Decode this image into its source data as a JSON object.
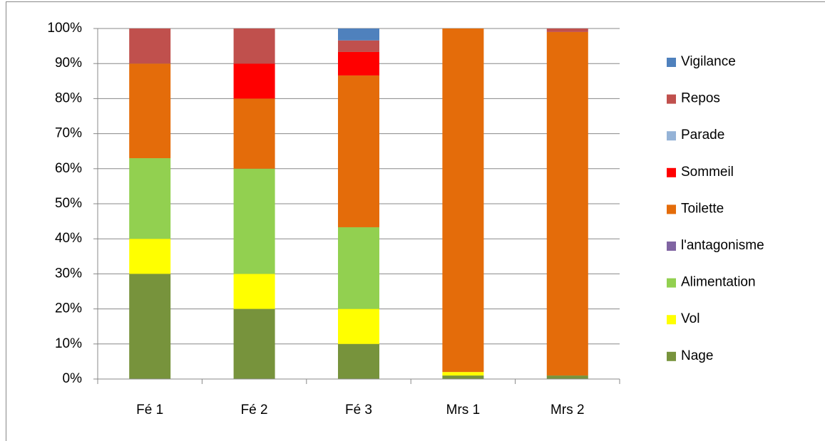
{
  "chart_data": {
    "type": "stacked_bar",
    "categories": [
      "Fé 1",
      "Fé 2",
      "Fé 3",
      "Mrs 1",
      "Mrs 2"
    ],
    "series": [
      {
        "name": "Nage",
        "color": "#77933c",
        "values": [
          30,
          20,
          10,
          1,
          1
        ]
      },
      {
        "name": "Vol",
        "color": "#ffff00",
        "values": [
          10,
          10,
          10,
          1,
          0
        ]
      },
      {
        "name": "Alimentation",
        "color": "#92d050",
        "values": [
          23,
          30,
          23.3,
          0,
          0
        ]
      },
      {
        "name": "l'antagonisme",
        "color": "#8064a2",
        "values": [
          0,
          0,
          0,
          0,
          0
        ]
      },
      {
        "name": "Toilette",
        "color": "#e46c0a",
        "values": [
          27,
          20,
          43.3,
          98,
          98
        ]
      },
      {
        "name": "Sommeil",
        "color": "#ff0000",
        "values": [
          0,
          10,
          6.7,
          0,
          0
        ]
      },
      {
        "name": "Parade",
        "color": "#95b3d7",
        "values": [
          0,
          0,
          0,
          0,
          0
        ]
      },
      {
        "name": "Repos",
        "color": "#c0504d",
        "values": [
          10,
          10,
          3.3,
          0,
          1
        ]
      },
      {
        "name": "Vigilance",
        "color": "#4f81bd",
        "values": [
          0,
          0,
          3.4,
          0,
          0
        ]
      }
    ],
    "ylim": [
      0,
      100
    ],
    "yticks": [
      {
        "value": 0,
        "label": "0%"
      },
      {
        "value": 10,
        "label": "10%"
      },
      {
        "value": 20,
        "label": "20%"
      },
      {
        "value": 30,
        "label": "30%"
      },
      {
        "value": 40,
        "label": "40%"
      },
      {
        "value": 50,
        "label": "50%"
      },
      {
        "value": 60,
        "label": "60%"
      },
      {
        "value": 70,
        "label": "70%"
      },
      {
        "value": 80,
        "label": "80%"
      },
      {
        "value": 90,
        "label": "90%"
      },
      {
        "value": 100,
        "label": "100%"
      }
    ],
    "grid": true,
    "legend": "right"
  }
}
